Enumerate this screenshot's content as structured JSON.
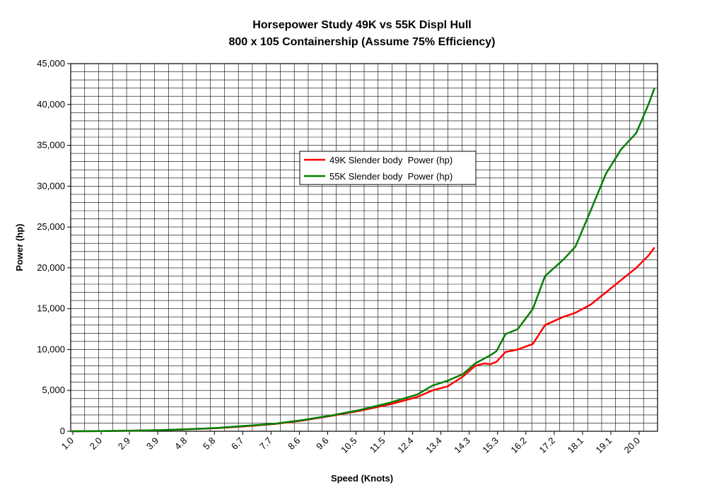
{
  "chart_data": {
    "type": "line",
    "title": "Horsepower Study 49K vs 55K Displ Hull",
    "subtitle": "800 x 105 Containership (Assume 75% Efficiency)",
    "xlabel": "Speed (Knots)",
    "ylabel": "Power (hp)",
    "ylim": [
      0,
      45000
    ],
    "y_ticks": [
      "0",
      "5,000",
      "10,000",
      "15,000",
      "20,000",
      "25,000",
      "30,000",
      "35,000",
      "40,000",
      "45,000"
    ],
    "x_tick_labels": [
      "1.0",
      "2.0",
      "2.9",
      "3.9",
      "4.8",
      "5.8",
      "6.7",
      "7.7",
      "8.6",
      "9.6",
      "10.5",
      "11.5",
      "12.4",
      "13.4",
      "14.3",
      "15.3",
      "16.2",
      "17.2",
      "18.1",
      "19.1",
      "20.0"
    ],
    "grid": true,
    "legend_position": "center-left",
    "x": [
      1.0,
      2.0,
      2.9,
      3.9,
      4.8,
      5.8,
      6.7,
      7.7,
      8.6,
      9.6,
      10.5,
      11.5,
      12.4,
      12.9,
      13.4,
      13.9,
      14.3,
      14.6,
      14.8,
      15.0,
      15.3,
      15.7,
      16.2,
      16.6,
      17.2,
      17.6,
      18.1,
      18.6,
      19.1,
      19.6,
      20.0,
      20.2
    ],
    "series": [
      {
        "name": "49K Slender body  Power (hp)",
        "color": "#ff0000",
        "values": [
          0,
          20,
          60,
          130,
          230,
          380,
          600,
          880,
          1300,
          1900,
          2500,
          3300,
          4200,
          5000,
          5500,
          6700,
          8000,
          8300,
          8200,
          8500,
          9700,
          10000,
          10700,
          13000,
          14000,
          14500,
          15500,
          17000,
          18500,
          20000,
          21500,
          22500
        ]
      },
      {
        "name": "55K Slender body  Power (hp)",
        "color": "#008000",
        "values": [
          0,
          20,
          60,
          130,
          240,
          400,
          650,
          920,
          1350,
          1950,
          2600,
          3500,
          4500,
          5600,
          6200,
          7000,
          8300,
          8900,
          9300,
          9800,
          11900,
          12500,
          15000,
          19000,
          21000,
          22600,
          27000,
          31500,
          34500,
          36500,
          40000,
          42000
        ]
      }
    ]
  }
}
